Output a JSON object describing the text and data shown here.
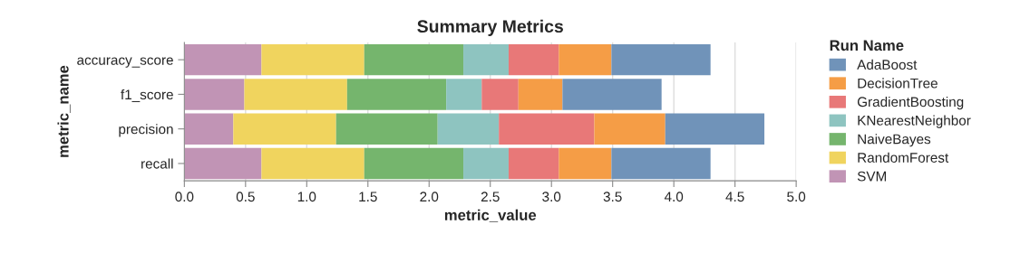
{
  "chart_data": {
    "type": "bar",
    "orientation": "horizontal",
    "stacked": true,
    "title": "Summary Metrics",
    "xlabel": "metric_value",
    "ylabel": "metric_name",
    "legend_title": "Run Name",
    "legend": "right",
    "grid": "x",
    "categories": [
      "accuracy_score",
      "f1_score",
      "precision",
      "recall"
    ],
    "xlim": [
      0,
      5
    ],
    "xticks": [
      {
        "value": 0,
        "label": "0.0"
      },
      0.5,
      {
        "value": 1,
        "label": "1.0"
      },
      1.5,
      {
        "value": 2,
        "label": "2.0"
      },
      2.5,
      {
        "value": 3,
        "label": "3.0"
      },
      3.5,
      {
        "value": 4,
        "label": "4.0"
      },
      4.5,
      {
        "value": 5,
        "label": "5.0"
      }
    ],
    "series": [
      {
        "name": "SVM",
        "color": "#c194b5",
        "values": [
          0.63,
          0.49,
          0.4,
          0.63
        ]
      },
      {
        "name": "RandomForest",
        "color": "#f0d45e",
        "values": [
          0.84,
          0.84,
          0.84,
          0.84
        ]
      },
      {
        "name": "NaiveBayes",
        "color": "#75b56d",
        "values": [
          0.81,
          0.81,
          0.83,
          0.81
        ]
      },
      {
        "name": "KNearestNeighbor",
        "color": "#8ec4c0",
        "values": [
          0.37,
          0.29,
          0.5,
          0.37
        ]
      },
      {
        "name": "GradientBoosting",
        "color": "#e87878",
        "values": [
          0.41,
          0.3,
          0.78,
          0.41
        ]
      },
      {
        "name": "DecisionTree",
        "color": "#f59d46",
        "values": [
          0.43,
          0.36,
          0.58,
          0.43
        ]
      },
      {
        "name": "AdaBoost",
        "color": "#7093b9",
        "values": [
          0.81,
          0.81,
          0.81,
          0.81
        ]
      }
    ]
  }
}
